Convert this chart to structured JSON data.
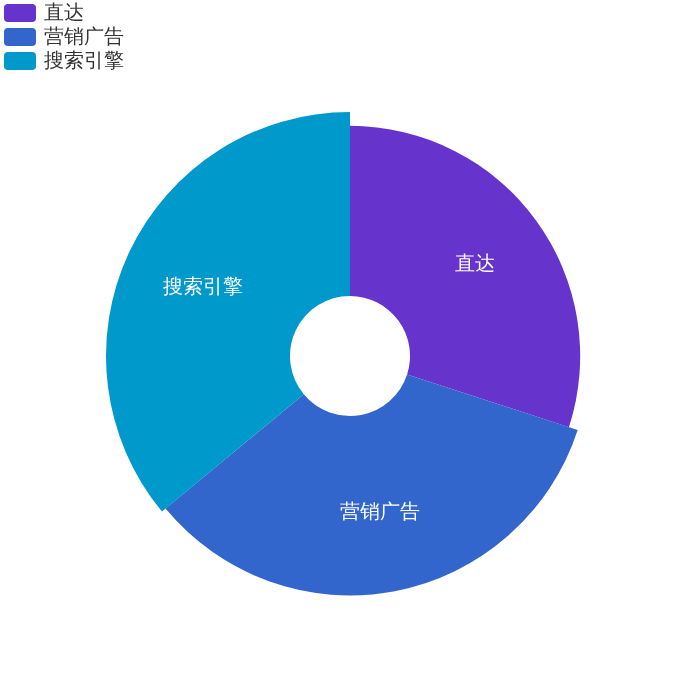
{
  "chart_data": {
    "type": "donut",
    "categories": [
      "直达",
      "营销广告",
      "搜索引擎"
    ],
    "values": [
      30,
      34,
      36
    ],
    "colors": [
      "#6633cc",
      "#3366cc",
      "#0099cc"
    ],
    "legend": "top left",
    "data_labels": false
  }
}
